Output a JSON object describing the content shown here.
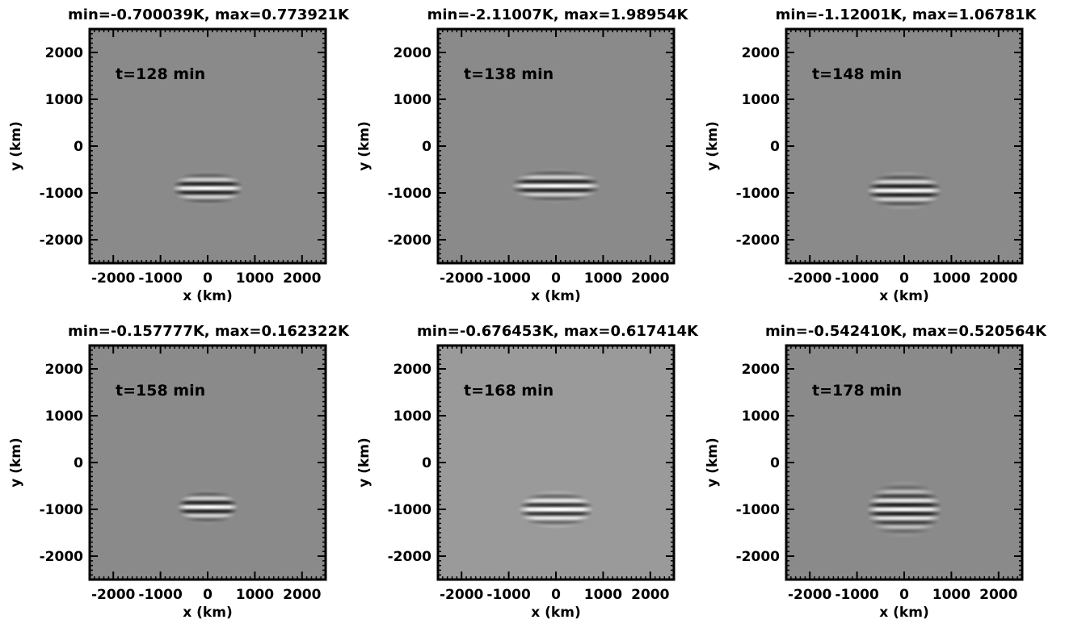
{
  "chart_data": [
    {
      "type": "heatmap",
      "title": "min=-0.700039K, max=0.773921K",
      "annotation": "t=128 min",
      "xlabel": "x (km)",
      "ylabel": "y (km)",
      "xlim": [
        -2500,
        2500
      ],
      "ylim": [
        -2500,
        2500
      ],
      "xticks": [
        -2000,
        -1000,
        0,
        1000,
        2000
      ],
      "yticks": [
        -2000,
        -1000,
        0,
        1000,
        2000
      ],
      "xtick_labels": [
        "-2000",
        "-1000",
        "0",
        "1000",
        "2000"
      ],
      "ytick_labels": [
        "-2000",
        "-1000",
        "0",
        "1000",
        "2000"
      ],
      "min_K": -0.700039,
      "max_K": 0.773921,
      "pattern": {
        "center_x": 0,
        "center_y": -900,
        "half_width_x": 750,
        "half_height_y": 400,
        "stripe_spacing_y": 190
      }
    },
    {
      "type": "heatmap",
      "title": "min=-2.11007K, max=1.98954K",
      "annotation": "t=138 min",
      "xlabel": "x (km)",
      "ylabel": "y (km)",
      "xlim": [
        -2500,
        2500
      ],
      "ylim": [
        -2500,
        2500
      ],
      "xticks": [
        -2000,
        -1000,
        0,
        1000,
        2000
      ],
      "yticks": [
        -2000,
        -1000,
        0,
        1000,
        2000
      ],
      "xtick_labels": [
        "-2000",
        "-1000",
        "0",
        "1000",
        "2000"
      ],
      "ytick_labels": [
        "-2000",
        "-1000",
        "0",
        "1000",
        "2000"
      ],
      "min_K": -2.11007,
      "max_K": 1.98954,
      "pattern": {
        "center_x": 0,
        "center_y": -850,
        "half_width_x": 950,
        "half_height_y": 400,
        "stripe_spacing_y": 190
      }
    },
    {
      "type": "heatmap",
      "title": "min=-1.12001K, max=1.06781K",
      "annotation": "t=148 min",
      "xlabel": "x (km)",
      "ylabel": "y (km)",
      "xlim": [
        -2500,
        2500
      ],
      "ylim": [
        -2500,
        2500
      ],
      "xticks": [
        -2000,
        -1000,
        0,
        1000,
        2000
      ],
      "yticks": [
        -2000,
        -1000,
        0,
        1000,
        2000
      ],
      "xtick_labels": [
        "-2000",
        "-1000",
        "0",
        "1000",
        "2000"
      ],
      "ytick_labels": [
        "-2000",
        "-1000",
        "0",
        "1000",
        "2000"
      ],
      "min_K": -1.12001,
      "max_K": 1.06781,
      "pattern": {
        "center_x": 0,
        "center_y": -950,
        "half_width_x": 800,
        "half_height_y": 450,
        "stripe_spacing_y": 190
      }
    },
    {
      "type": "heatmap",
      "title": "min=-0.157777K, max=0.162322K",
      "annotation": "t=158 min",
      "xlabel": "x (km)",
      "ylabel": "y (km)",
      "xlim": [
        -2500,
        2500
      ],
      "ylim": [
        -2500,
        2500
      ],
      "xticks": [
        -2000,
        -1000,
        0,
        1000,
        2000
      ],
      "yticks": [
        -2000,
        -1000,
        0,
        1000,
        2000
      ],
      "xtick_labels": [
        "-2000",
        "-1000",
        "0",
        "1000",
        "2000"
      ],
      "ytick_labels": [
        "-2000",
        "-1000",
        "0",
        "1000",
        "2000"
      ],
      "min_K": -0.157777,
      "max_K": 0.162322,
      "pattern": {
        "center_x": 0,
        "center_y": -950,
        "half_width_x": 650,
        "half_height_y": 400,
        "stripe_spacing_y": 190
      }
    },
    {
      "type": "heatmap",
      "title": "min=-0.676453K, max=0.617414K",
      "annotation": "t=168 min",
      "xlabel": "x (km)",
      "ylabel": "y (km)",
      "xlim": [
        -2500,
        2500
      ],
      "ylim": [
        -2500,
        2500
      ],
      "xticks": [
        -2000,
        -1000,
        0,
        1000,
        2000
      ],
      "yticks": [
        -2000,
        -1000,
        0,
        1000,
        2000
      ],
      "xtick_labels": [
        "-2000",
        "-1000",
        "0",
        "1000",
        "2000"
      ],
      "ytick_labels": [
        "-2000",
        "-1000",
        "0",
        "1000",
        "2000"
      ],
      "min_K": -0.676453,
      "max_K": 0.617414,
      "pattern": {
        "center_x": 0,
        "center_y": -1000,
        "half_width_x": 800,
        "half_height_y": 450,
        "stripe_spacing_y": 190
      }
    },
    {
      "type": "heatmap",
      "title": "min=-0.542410K, max=0.520564K",
      "annotation": "t=178 min",
      "xlabel": "x (km)",
      "ylabel": "y (km)",
      "xlim": [
        -2500,
        2500
      ],
      "ylim": [
        -2500,
        2500
      ],
      "xticks": [
        -2000,
        -1000,
        0,
        1000,
        2000
      ],
      "yticks": [
        -2000,
        -1000,
        0,
        1000,
        2000
      ],
      "xtick_labels": [
        "-2000",
        "-1000",
        "0",
        "1000",
        "2000"
      ],
      "ytick_labels": [
        "-2000",
        "-1000",
        "0",
        "1000",
        "2000"
      ],
      "min_K": -0.54241,
      "max_K": 0.520564,
      "pattern": {
        "center_x": 0,
        "center_y": -1000,
        "half_width_x": 800,
        "half_height_y": 650,
        "stripe_spacing_y": 190
      }
    }
  ],
  "colors": {
    "background_gray": "#8a8a8a",
    "panel_gray_alt": "#9a9a9a",
    "frame": "#000000"
  }
}
